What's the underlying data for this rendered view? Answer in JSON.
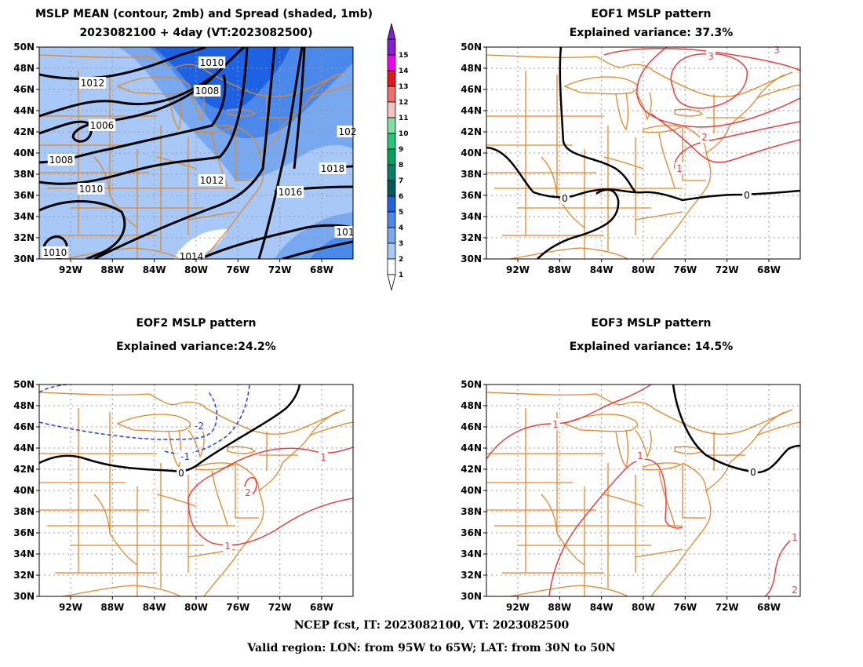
{
  "panels": [
    {
      "id": "mslp-mean",
      "title_lines": [
        "MSLP MEAN (contour, 2mb) and Spread (shaded, 1mb)",
        "2023082100 + 4day (VT:2023082500)"
      ],
      "contour_labels": [
        "1010",
        "1012",
        "1008",
        "1006",
        "1008",
        "1010",
        "1012",
        "1016",
        "1018",
        "1014",
        "1010",
        "101",
        "102"
      ]
    },
    {
      "id": "eof1",
      "title_lines": [
        "EOF1 MSLP pattern",
        "Explained variance: 37.3%"
      ],
      "contour_labels": [
        "0",
        "0",
        "1",
        "2",
        "3",
        "3"
      ]
    },
    {
      "id": "eof2",
      "title_lines": [
        "EOF2 MSLP pattern",
        "Explained variance:24.2%"
      ],
      "contour_labels": [
        "-2",
        "-1",
        "0",
        "1",
        "1",
        "2"
      ]
    },
    {
      "id": "eof3",
      "title_lines": [
        "EOF3 MSLP pattern",
        "Explained variance: 14.5%"
      ],
      "contour_labels": [
        "0",
        "1",
        "1",
        "1",
        "2"
      ]
    }
  ],
  "axes": {
    "lat_ticks": [
      "50N",
      "48N",
      "46N",
      "44N",
      "42N",
      "40N",
      "38N",
      "36N",
      "34N",
      "32N",
      "30N"
    ],
    "lon_ticks": [
      "92W",
      "88W",
      "84W",
      "80W",
      "76W",
      "72W",
      "68W"
    ]
  },
  "colorbar": {
    "levels": [
      "1",
      "2",
      "3",
      "4",
      "5",
      "6",
      "7",
      "8",
      "9",
      "10",
      "11",
      "12",
      "13",
      "14",
      "15"
    ],
    "colors": [
      "#ffffff",
      "#a8c8f8",
      "#78a8f0",
      "#4a88ec",
      "#1e62e4",
      "#005c5c",
      "#008064",
      "#00a060",
      "#20c878",
      "#80e0a0",
      "#f8c0c0",
      "#f07070",
      "#e01818",
      "#f000f0",
      "#8020d0"
    ]
  },
  "footer": {
    "line1": "NCEP fcst, IT: 2023082100, VT: 2023082500",
    "line2": "Valid region: LON: from 95W to 65W; LAT: from 30N to 50N"
  },
  "colors": {
    "border": "#e08828",
    "contour": "#000000",
    "positive": "#e84040",
    "negative": "#2040e0",
    "grid": "#9a9a9a"
  }
}
